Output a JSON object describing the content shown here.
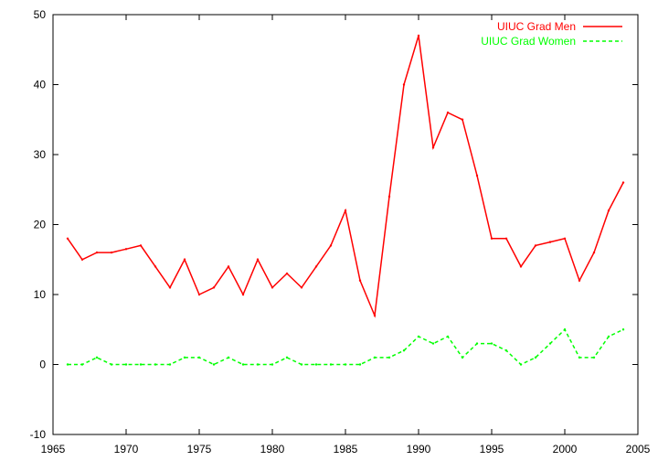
{
  "chart_data": {
    "type": "line",
    "title": "",
    "xlabel": "",
    "ylabel": "",
    "xlim": [
      1965,
      2005
    ],
    "ylim": [
      -10,
      50
    ],
    "x_ticks": [
      1965,
      1970,
      1975,
      1980,
      1985,
      1990,
      1995,
      2000,
      2005
    ],
    "y_ticks": [
      -10,
      0,
      10,
      20,
      30,
      40,
      50
    ],
    "grid": false,
    "legend_position": "top-right",
    "x": [
      1966,
      1967,
      1968,
      1969,
      1970,
      1971,
      1972,
      1973,
      1974,
      1975,
      1976,
      1977,
      1978,
      1979,
      1980,
      1981,
      1982,
      1983,
      1984,
      1985,
      1986,
      1987,
      1988,
      1989,
      1990,
      1991,
      1992,
      1993,
      1994,
      1995,
      1996,
      1997,
      1998,
      1999,
      2000,
      2001,
      2002,
      2003,
      2004
    ],
    "series": [
      {
        "name": "UIUC Grad Men",
        "color": "#ff0000",
        "dash": "solid",
        "values": [
          18,
          15,
          16,
          16,
          16.5,
          17,
          14,
          11,
          15,
          10,
          11,
          14,
          10,
          15,
          11,
          13,
          11,
          14,
          17,
          22,
          12,
          7,
          24,
          40,
          47,
          31,
          36,
          35,
          27,
          18,
          18,
          14,
          17,
          17.5,
          18,
          12,
          16,
          22,
          26
        ]
      },
      {
        "name": "UIUC Grad Women",
        "color": "#00ff00",
        "dash": "dashed",
        "values": [
          0,
          0,
          1,
          0,
          0,
          0,
          0,
          0,
          1,
          1,
          0,
          1,
          0,
          0,
          0,
          1,
          0,
          0,
          0,
          0,
          0,
          1,
          1,
          2,
          4,
          3,
          4,
          1,
          3,
          3,
          2,
          0,
          1,
          3,
          5,
          1,
          1,
          4,
          5
        ]
      }
    ]
  }
}
